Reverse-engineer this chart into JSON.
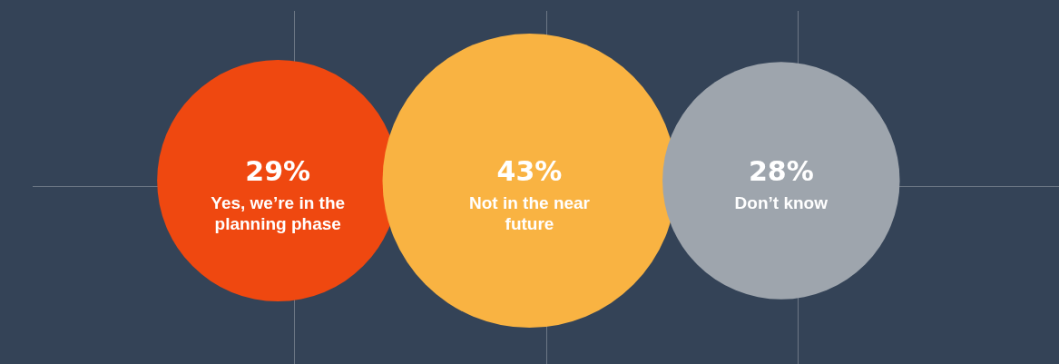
{
  "chart_data": {
    "type": "other",
    "categories": [
      "Yes, we’re in the planning phase",
      "Not in the near future",
      "Don’t know"
    ],
    "values": [
      29,
      43,
      28
    ],
    "value_labels": [
      "29%",
      "43%",
      "28%"
    ],
    "colors": [
      "#ef4810",
      "#f9b342",
      "#9ea5ad"
    ]
  }
}
